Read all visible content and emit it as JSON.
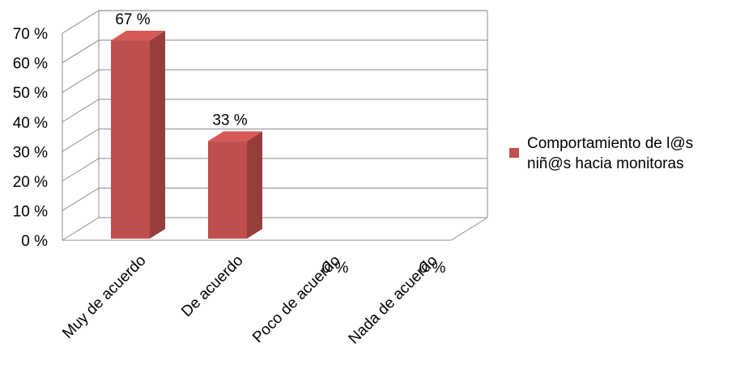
{
  "chart_data": {
    "type": "bar",
    "categories": [
      "Muy de acuerdo",
      "De acuerdo",
      "Poco de acuerdo",
      "Nada de acuerdo"
    ],
    "series": [
      {
        "name": "Comportamiento de l@s niñ@s hacia monitoras",
        "values": [
          67,
          33,
          0,
          0
        ],
        "color": "#c0504d"
      }
    ],
    "data_labels": [
      "67 %",
      "33 %",
      "0 %",
      "0 %"
    ],
    "yticks": [
      "0 %",
      "10 %",
      "20 %",
      "30 %",
      "40 %",
      "50 %",
      "60 %",
      "70 %"
    ],
    "ylim": [
      0,
      70
    ],
    "grid": true,
    "legend_position": "right",
    "legend_lines": [
      "Comportamiento de l@s",
      "niñ@s hacia monitoras"
    ],
    "style": "3d-column"
  }
}
